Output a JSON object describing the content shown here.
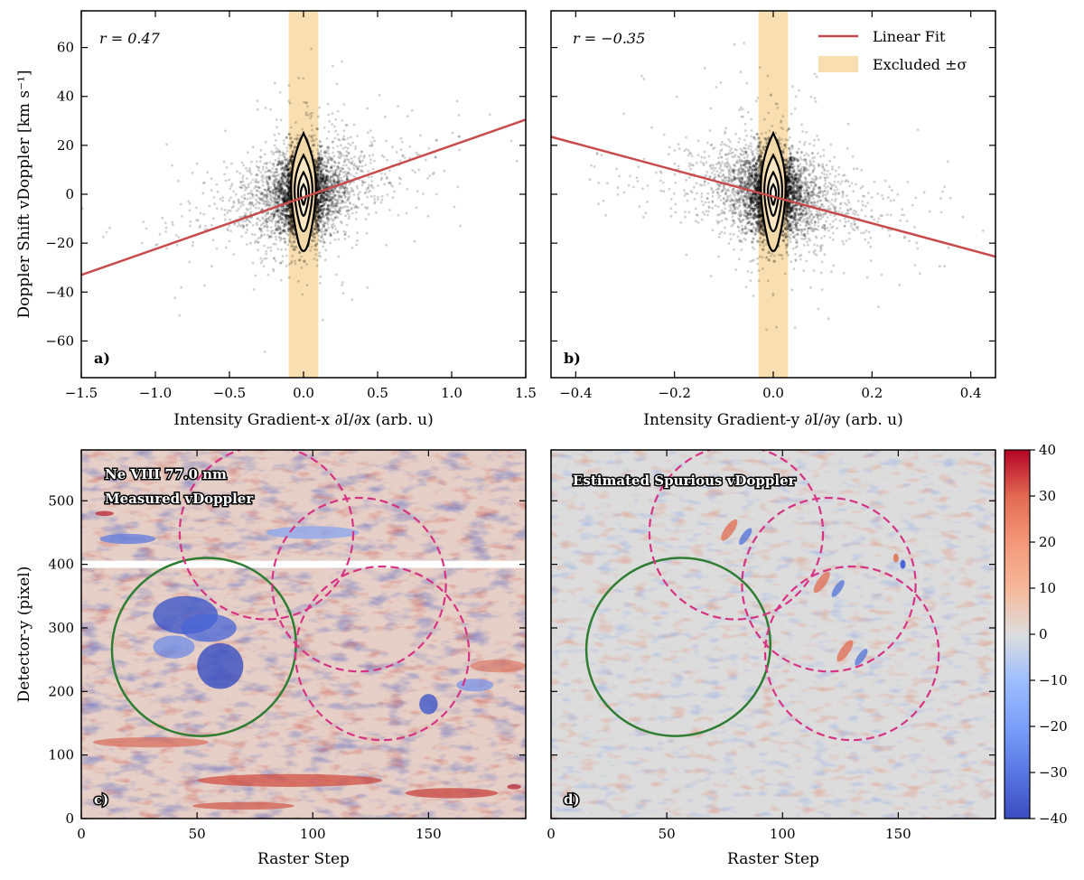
{
  "chart_data": [
    {
      "panel": "a)",
      "type": "scatter",
      "xlabel": "Intensity Gradient-x ∂I/∂x (arb. u)",
      "ylabel": "Doppler Shift vDoppler [km s⁻¹]",
      "xlim": [
        -1.5,
        1.5
      ],
      "ylim": [
        -75,
        75
      ],
      "xticks": [
        -1.5,
        -1.0,
        -0.5,
        0.0,
        0.5,
        1.0,
        1.5
      ],
      "xtick_labels": [
        "−1.5",
        "−1.0",
        "−0.5",
        "0.0",
        "0.5",
        "1.0",
        "1.5"
      ],
      "yticks": [
        -60,
        -40,
        -20,
        0,
        20,
        40,
        60
      ],
      "ytick_labels": [
        "−60",
        "−40",
        "−20",
        "0",
        "20",
        "40",
        "60"
      ],
      "annotation": "r = 0.47",
      "fit_line": {
        "x": [
          -1.5,
          1.5
        ],
        "y": [
          -33,
          30.5
        ]
      },
      "excluded_band": [
        -0.1,
        0.1
      ],
      "point_spread": {
        "x_sigma": 0.22,
        "y_sigma": 9
      }
    },
    {
      "panel": "b)",
      "type": "scatter",
      "xlabel": "Intensity Gradient-y ∂I/∂y (arb. u)",
      "xlim": [
        -0.45,
        0.45
      ],
      "ylim": [
        -75,
        75
      ],
      "xticks": [
        -0.4,
        -0.2,
        0.0,
        0.2,
        0.4
      ],
      "xtick_labels": [
        "−0.4",
        "−0.2",
        "0.0",
        "0.2",
        "0.4"
      ],
      "yticks": [
        -60,
        -40,
        -20,
        0,
        20,
        40,
        60
      ],
      "annotation": "r = −0.35",
      "fit_line": {
        "x": [
          -0.45,
          0.45
        ],
        "y": [
          23.5,
          -25.5
        ]
      },
      "excluded_band": [
        -0.03,
        0.03
      ],
      "point_spread": {
        "x_sigma": 0.075,
        "y_sigma": 9
      }
    },
    {
      "panel": "c)",
      "type": "heatmap",
      "title_lines": [
        "Ne VIII 77.0 nm",
        "Measured vDoppler"
      ],
      "xlabel": "Raster Step",
      "ylabel": "Detector-y (pixel)",
      "xlim": [
        0,
        192
      ],
      "ylim": [
        0,
        580
      ],
      "xticks": [
        0,
        50,
        100,
        150
      ],
      "xtick_labels": [
        "0",
        "50",
        "100",
        "150"
      ],
      "yticks": [
        0,
        100,
        200,
        300,
        400,
        500
      ],
      "ytick_labels": [
        "0",
        "100",
        "200",
        "300",
        "400",
        "500"
      ],
      "missing_row_y": 400,
      "ellipse": {
        "cx": 53,
        "cy": 270,
        "rx": 20,
        "ry": 142,
        "angle_deg": 22,
        "color": "#2e7d32"
      },
      "circles": [
        {
          "cx": 80,
          "cy": 450,
          "r": 15
        },
        {
          "cx": 120,
          "cy": 368,
          "r": 15
        },
        {
          "cx": 130,
          "cy": 260,
          "r": 15
        }
      ],
      "circle_color": "#d63384"
    },
    {
      "panel": "d)",
      "type": "heatmap",
      "title_lines": [
        "Estimated Spurious vDoppler"
      ],
      "xlabel": "Raster Step",
      "xlim": [
        0,
        192
      ],
      "ylim": [
        0,
        580
      ],
      "xticks": [
        0,
        50,
        100,
        150
      ],
      "xtick_labels": [
        "0",
        "50",
        "100",
        "150"
      ],
      "ellipse": {
        "cx": 55,
        "cy": 270,
        "rx": 20,
        "ry": 142,
        "angle_deg": 22,
        "color": "#2e7d32"
      },
      "circles": [
        {
          "cx": 80,
          "cy": 450,
          "r": 15
        },
        {
          "cx": 120,
          "cy": 368,
          "r": 15
        },
        {
          "cx": 130,
          "cy": 260,
          "r": 15
        }
      ],
      "circle_color": "#d63384"
    }
  ],
  "legend": {
    "items": [
      {
        "label": "Linear Fit",
        "color": "#c94a4a"
      },
      {
        "label": "Excluded ±σ",
        "color": "#f8deb0"
      }
    ]
  },
  "colorbar": {
    "range": [
      -40,
      40
    ],
    "ticks": [
      -40,
      -30,
      -20,
      -10,
      0,
      10,
      20,
      30,
      40
    ],
    "tick_labels": [
      "−40",
      "−30",
      "−20",
      "−10",
      "0",
      "10",
      "20",
      "30",
      "40"
    ],
    "colormap": "coolwarm"
  },
  "colors": {
    "fit_line": "#c94a4a",
    "band": "#f8deb0",
    "ellipse": "#2e7d32",
    "circle": "#d63384"
  }
}
